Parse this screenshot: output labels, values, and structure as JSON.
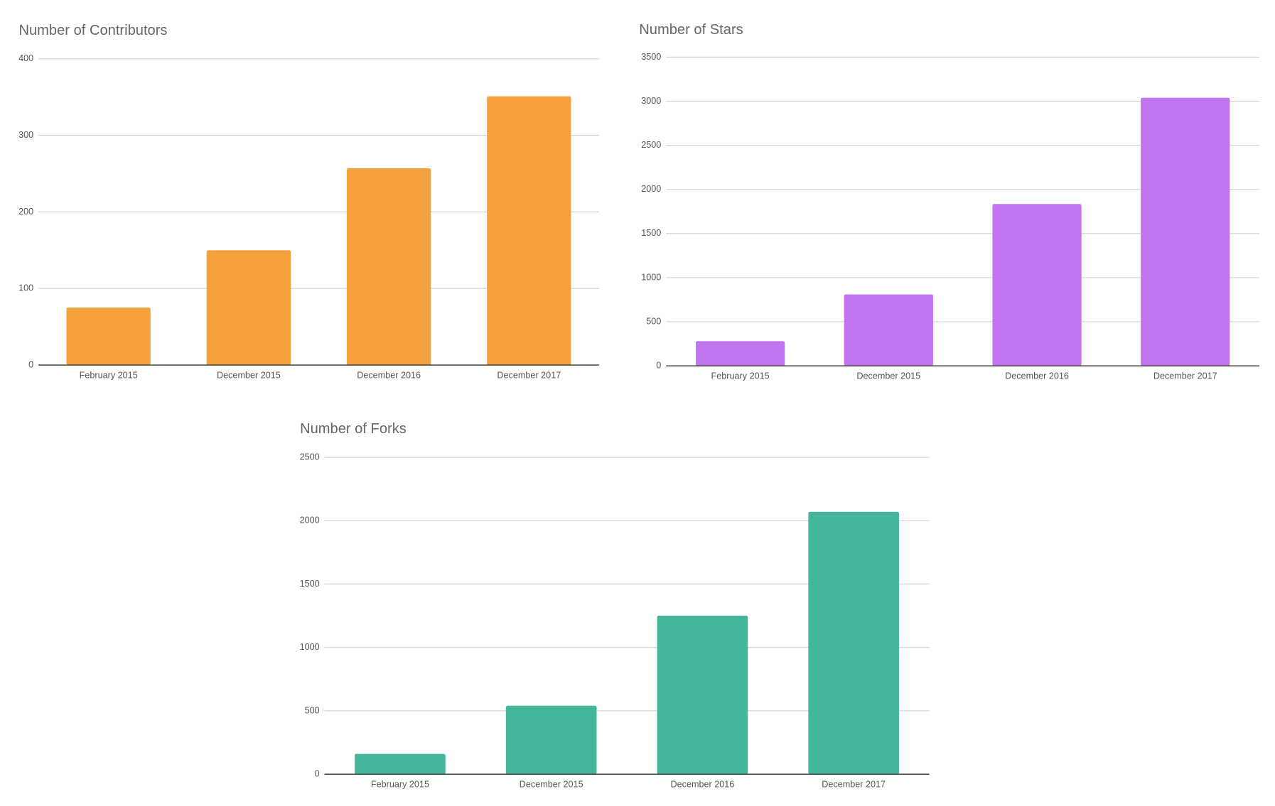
{
  "chart_data": [
    {
      "type": "bar",
      "title": "Number of Contributors",
      "categories": [
        "February 2015",
        "December 2015",
        "December 2016",
        "December 2017"
      ],
      "values": [
        75,
        150,
        257,
        351
      ],
      "color": "#f4a03c",
      "ylim": [
        0,
        400
      ],
      "yticks": [
        0,
        100,
        200,
        300,
        400
      ],
      "grid": true
    },
    {
      "type": "bar",
      "title": "Number of Stars",
      "categories": [
        "February 2015",
        "December 2015",
        "December 2016",
        "December 2017"
      ],
      "values": [
        280,
        810,
        1835,
        3040
      ],
      "color": "#c074ef",
      "ylim": [
        0,
        3500
      ],
      "yticks": [
        0,
        500,
        1000,
        1500,
        2000,
        2500,
        3000,
        3500
      ],
      "grid": true
    },
    {
      "type": "bar",
      "title": "Number of Forks",
      "categories": [
        "February 2015",
        "December 2015",
        "December 2016",
        "December 2017"
      ],
      "values": [
        160,
        540,
        1250,
        2070
      ],
      "color": "#43b69c",
      "ylim": [
        0,
        2500
      ],
      "yticks": [
        0,
        500,
        1000,
        1500,
        2000,
        2500
      ],
      "grid": true
    }
  ]
}
